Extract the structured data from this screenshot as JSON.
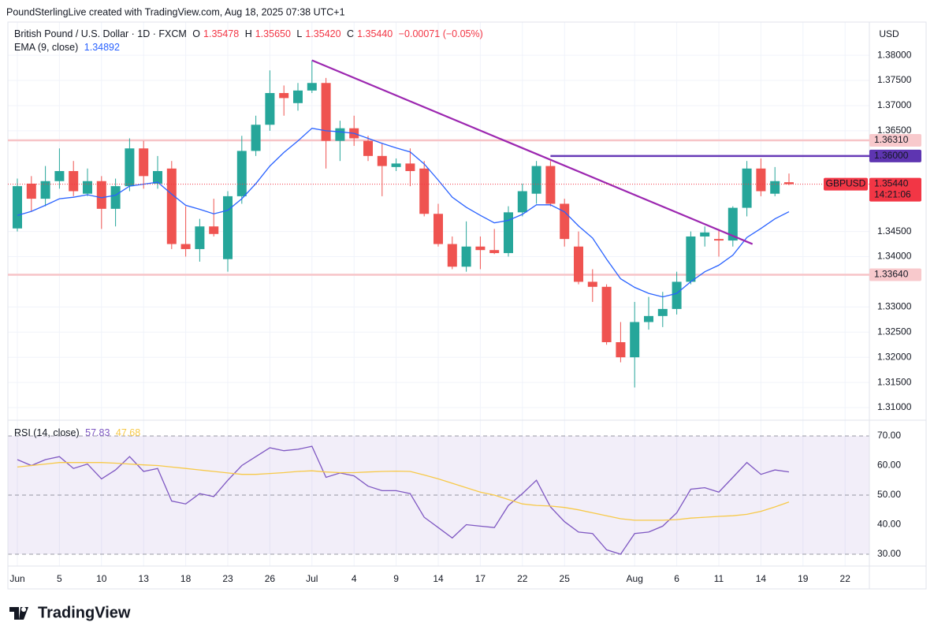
{
  "header": {
    "caption": "PoundSterlingLive created with TradingView.com, Aug 18, 2025 07:38 UTC+1"
  },
  "footer": {
    "logo": "TradingView"
  },
  "chart_data": [
    {
      "type": "candlestick",
      "currency_label": "USD",
      "legend": {
        "symbol": "British Pound / U.S. Dollar · 1D · FXCM",
        "fields": [
          {
            "key": "O",
            "value": "1.35478"
          },
          {
            "key": "H",
            "value": "1.35650"
          },
          {
            "key": "L",
            "value": "1.35420"
          },
          {
            "key": "C",
            "value": "1.35440"
          }
        ],
        "change": "−0.00071 (−0.05%)"
      },
      "categories": [
        "Jun",
        null,
        null,
        "5",
        null,
        null,
        "10",
        null,
        null,
        "13",
        null,
        null,
        "18",
        null,
        null,
        "23",
        null,
        null,
        "26",
        null,
        null,
        "Jul",
        null,
        null,
        "4",
        null,
        null,
        "9",
        null,
        null,
        "14",
        null,
        null,
        "17",
        null,
        null,
        "22",
        null,
        null,
        "25",
        null,
        null,
        null,
        null,
        "Aug",
        null,
        null,
        "6",
        null,
        null,
        "11",
        null,
        null,
        "14",
        null,
        null
      ],
      "future_categories": [
        "19",
        null,
        null,
        "22"
      ],
      "up_color": "#26a69a",
      "down_color": "#ef5350",
      "open": [
        1.3456,
        1.3545,
        1.3515,
        1.355,
        1.357,
        1.3525,
        1.355,
        1.3495,
        1.354,
        1.3615,
        1.3545,
        1.3575,
        1.3425,
        1.3415,
        1.346,
        1.3395,
        1.352,
        1.361,
        1.3662,
        1.3725,
        1.3705,
        1.373,
        1.3745,
        1.363,
        1.3655,
        1.363,
        1.36,
        1.3578,
        1.3585,
        1.3575,
        1.3485,
        1.3425,
        1.338,
        1.342,
        1.3413,
        1.3407,
        1.3488,
        1.3525,
        1.358,
        1.3505,
        1.342,
        1.335,
        1.334,
        1.323,
        1.32,
        1.327,
        1.3282,
        1.3296,
        1.335,
        1.344,
        1.3435,
        1.3432,
        1.3497,
        1.3575,
        1.3525,
        1.35478
      ],
      "high": [
        1.3555,
        1.356,
        1.358,
        1.3615,
        1.359,
        1.3575,
        1.356,
        1.3555,
        1.3635,
        1.363,
        1.36,
        1.359,
        1.35,
        1.3475,
        1.3515,
        1.353,
        1.364,
        1.368,
        1.377,
        1.374,
        1.3745,
        1.379,
        1.3755,
        1.367,
        1.368,
        1.364,
        1.3625,
        1.3595,
        1.3615,
        1.359,
        1.3505,
        1.344,
        1.347,
        1.344,
        1.3455,
        1.35,
        1.3545,
        1.359,
        1.359,
        1.3515,
        1.345,
        1.3375,
        1.3345,
        1.327,
        1.331,
        1.332,
        1.333,
        1.337,
        1.345,
        1.346,
        1.3455,
        1.35,
        1.359,
        1.3595,
        1.3578,
        1.3565
      ],
      "low": [
        1.345,
        1.349,
        1.35,
        1.3535,
        1.352,
        1.352,
        1.3455,
        1.346,
        1.353,
        1.3535,
        1.3535,
        1.3415,
        1.34,
        1.339,
        1.344,
        1.337,
        1.3505,
        1.36,
        1.365,
        1.368,
        1.369,
        1.3725,
        1.3575,
        1.359,
        1.362,
        1.359,
        1.352,
        1.357,
        1.354,
        1.348,
        1.342,
        1.3375,
        1.337,
        1.3375,
        1.3405,
        1.34,
        1.348,
        1.3505,
        1.35,
        1.342,
        1.3345,
        1.331,
        1.3225,
        1.319,
        1.314,
        1.3255,
        1.326,
        1.3285,
        1.3345,
        1.342,
        1.34,
        1.342,
        1.348,
        1.352,
        1.352,
        1.3542
      ],
      "close": [
        1.354,
        1.3515,
        1.355,
        1.357,
        1.353,
        1.355,
        1.3495,
        1.354,
        1.3615,
        1.356,
        1.357,
        1.3425,
        1.3415,
        1.346,
        1.3445,
        1.352,
        1.361,
        1.3662,
        1.3725,
        1.3715,
        1.373,
        1.3745,
        1.363,
        1.3655,
        1.3635,
        1.36,
        1.358,
        1.3585,
        1.357,
        1.3485,
        1.3425,
        1.338,
        1.342,
        1.3413,
        1.3407,
        1.3488,
        1.353,
        1.358,
        1.3505,
        1.3435,
        1.335,
        1.334,
        1.323,
        1.32,
        1.327,
        1.3282,
        1.3296,
        1.335,
        1.344,
        1.3448,
        1.3432,
        1.3497,
        1.3575,
        1.353,
        1.355,
        1.3544
      ],
      "overlays": [
        {
          "name": "EMA (9, close)",
          "color": "#2962ff",
          "values": [
            1.3482,
            1.349,
            1.3502,
            1.3515,
            1.3518,
            1.3523,
            1.3517,
            1.3522,
            1.354,
            1.3544,
            1.3548,
            1.3524,
            1.3502,
            1.3494,
            1.3485,
            1.3492,
            1.3515,
            1.3545,
            1.358,
            1.3607,
            1.363,
            1.3655,
            1.365,
            1.3648,
            1.3645,
            1.3635,
            1.3625,
            1.3616,
            1.3608,
            1.3584,
            1.3552,
            1.3518,
            1.3498,
            1.3482,
            1.3467,
            1.3472,
            1.3484,
            1.3503,
            1.3503,
            1.3489,
            1.3461,
            1.3437,
            1.3395,
            1.3356,
            1.3339,
            1.3327,
            1.332,
            1.3327,
            1.335,
            1.337,
            1.3383,
            1.3403,
            1.3438,
            1.3456,
            1.3475,
            1.34892
          ]
        }
      ],
      "ylim": [
        1.3075,
        1.3866
      ],
      "yticks": [
        {
          "value": 1.31,
          "label": "1.31000"
        },
        {
          "value": 1.315,
          "label": "1.31500"
        },
        {
          "value": 1.32,
          "label": "1.32000"
        },
        {
          "value": 1.325,
          "label": "1.32500"
        },
        {
          "value": 1.33,
          "label": "1.33000"
        },
        {
          "value": 1.34,
          "label": "1.34000"
        },
        {
          "value": 1.345,
          "label": "1.34500"
        },
        {
          "value": 1.365,
          "label": "1.36500"
        },
        {
          "value": 1.37,
          "label": "1.37000"
        },
        {
          "value": 1.375,
          "label": "1.37500"
        },
        {
          "value": 1.38,
          "label": "1.38000"
        }
      ],
      "grid": true,
      "levels": [
        {
          "value": 1.3631,
          "label": "1.36310",
          "color": "#f7c4c7",
          "label_bg": "#f8c9cc",
          "label_color": "#131722"
        },
        {
          "value": 1.3364,
          "label": "1.33640",
          "color": "#f7c4c7",
          "label_bg": "#f8c9cc",
          "label_color": "#131722"
        },
        {
          "value": 1.36,
          "label": "1.36000",
          "color": "#673ab7",
          "label_bg": "#5e35b1",
          "label_color": "#ffffff",
          "from": 38
        }
      ],
      "trendline": {
        "color": "#9c27b0",
        "x": [
          21,
          52.4
        ],
        "y": [
          1.379,
          1.3425
        ]
      },
      "last_price": {
        "symbol": "GBPUSD",
        "price": "1.35440",
        "countdown": "14:21:06",
        "color": "#f23645"
      }
    },
    {
      "type": "line",
      "title": "RSI (14, close)",
      "band_color": "#7e57c2",
      "series": [
        {
          "color": "#7e57c2",
          "values": [
            62,
            60,
            62,
            63,
            59,
            60.5,
            55.5,
            58.5,
            63,
            58,
            59,
            48,
            47,
            50.5,
            49.5,
            55,
            60,
            63,
            66,
            65,
            65.5,
            66.5,
            56,
            57.5,
            56.5,
            53,
            51.5,
            51.5,
            50.5,
            42.5,
            39,
            35.5,
            40,
            39.5,
            39,
            46.5,
            50.5,
            55,
            46,
            41,
            37.5,
            37,
            31.5,
            30,
            37,
            37.5,
            39.5,
            44,
            52,
            52.5,
            51,
            56,
            61,
            57,
            58.5,
            57.83
          ]
        },
        {
          "color": "#f7c948",
          "values": [
            59.5,
            60,
            60.5,
            61,
            61,
            61,
            61,
            60.8,
            60.5,
            60.2,
            60,
            59.5,
            59,
            58.5,
            58,
            57.5,
            57,
            57,
            57.3,
            57.6,
            58,
            58.2,
            57.8,
            57.6,
            57.6,
            57.8,
            58,
            58.1,
            58,
            56.8,
            55.5,
            54,
            52.5,
            51,
            50,
            48.5,
            47,
            46.5,
            46.3,
            45.8,
            45,
            44,
            43,
            42,
            41.5,
            41.5,
            41.5,
            41.7,
            42.2,
            42.5,
            42.8,
            43,
            43.5,
            44.5,
            46,
            47.68
          ]
        }
      ],
      "levels": [
        70,
        50,
        30
      ],
      "ylim": [
        26,
        75.33
      ],
      "yticks": [
        {
          "value": 70,
          "label": "70.00"
        },
        {
          "value": 60,
          "label": "60.00"
        },
        {
          "value": 50,
          "label": "50.00"
        },
        {
          "value": 40,
          "label": "40.00"
        },
        {
          "value": 30,
          "label": "30.00"
        }
      ]
    }
  ]
}
